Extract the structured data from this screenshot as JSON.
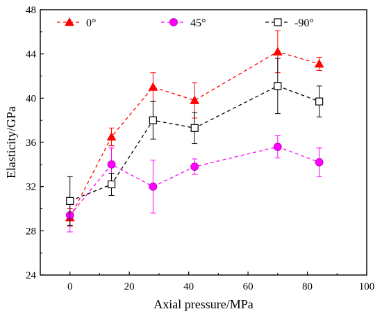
{
  "chart_data": {
    "type": "line",
    "xlabel": "Axial pressure/MPa",
    "ylabel": "Elasticity/GPa",
    "xlim": [
      -10,
      100
    ],
    "ylim": [
      24,
      48
    ],
    "xticks": [
      0,
      20,
      40,
      60,
      80,
      100
    ],
    "yticks": [
      24,
      28,
      32,
      36,
      40,
      44,
      48
    ],
    "xtick_labels": [
      "0",
      "20",
      "40",
      "60",
      "80",
      "100"
    ],
    "ytick_labels": [
      "24",
      "28",
      "32",
      "36",
      "40",
      "44",
      "48"
    ],
    "grid": false,
    "legend_position": "top, horizontal",
    "series": [
      {
        "name": "0°",
        "marker": "triangle-filled",
        "color": "#ff0000",
        "x": [
          0,
          14,
          28,
          42,
          70,
          84
        ],
        "y": [
          29.2,
          36.5,
          41.0,
          39.8,
          44.2,
          43.1
        ],
        "err": [
          0.8,
          0.8,
          1.3,
          1.6,
          1.9,
          0.6
        ]
      },
      {
        "name": "45°",
        "marker": "circle-filled",
        "color": "#ff00ff",
        "x": [
          0,
          14,
          28,
          42,
          70,
          84
        ],
        "y": [
          29.4,
          34.0,
          32.0,
          33.8,
          35.6,
          34.2
        ],
        "err": [
          1.5,
          1.5,
          2.4,
          0.7,
          1.0,
          1.3
        ]
      },
      {
        "name": "-90°",
        "marker": "square-open",
        "color": "#000000",
        "x": [
          0,
          14,
          28,
          42,
          70,
          84
        ],
        "y": [
          30.7,
          32.2,
          38.0,
          37.3,
          41.1,
          39.7
        ],
        "err": [
          2.2,
          1.0,
          1.7,
          1.4,
          2.5,
          1.4
        ]
      }
    ]
  }
}
